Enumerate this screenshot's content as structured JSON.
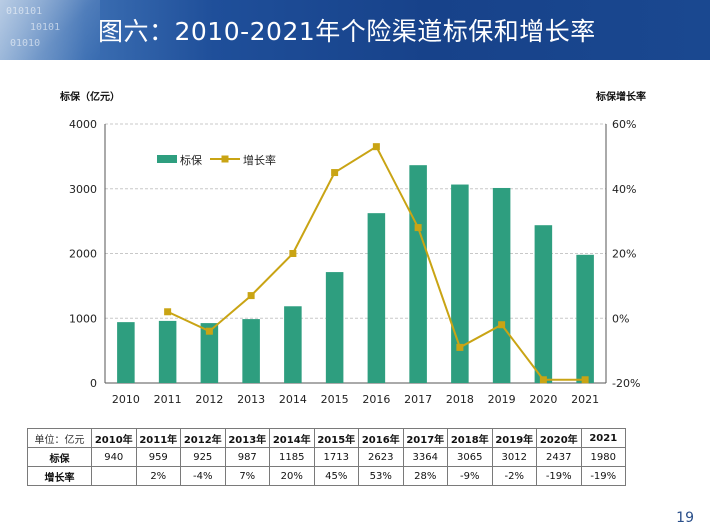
{
  "header": {
    "title": "图六：2010-2021年个险渠道标保和增长率",
    "deco_text": [
      "010101",
      "10101",
      "01010"
    ]
  },
  "chart_data": {
    "type": "bar+line",
    "categories": [
      "2010",
      "2011",
      "2012",
      "2013",
      "2014",
      "2015",
      "2016",
      "2017",
      "2018",
      "2019",
      "2020",
      "2021"
    ],
    "series": [
      {
        "name": "标保",
        "type": "bar",
        "axis": "left",
        "values": [
          940,
          959,
          925,
          987,
          1185,
          1713,
          2623,
          3364,
          3065,
          3012,
          2437,
          1980
        ],
        "color": "#2e9e7f"
      },
      {
        "name": "增长率",
        "type": "line",
        "axis": "right",
        "values": [
          null,
          2,
          -4,
          7,
          20,
          45,
          53,
          28,
          -9,
          -2,
          -19,
          -19
        ],
        "color": "#c9a414"
      }
    ],
    "ylabel_left": "标保（亿元）",
    "ylabel_right": "标保增长率",
    "ylim_left": [
      0,
      4000
    ],
    "yticks_left": [
      "0",
      "1000",
      "2000",
      "3000",
      "4000"
    ],
    "ylim_right": [
      -20,
      60
    ],
    "yticks_right": [
      "-20%",
      "0%",
      "20%",
      "40%",
      "60%"
    ],
    "grid": true,
    "legend_position": "top-left"
  },
  "table": {
    "unit_label": "单位：亿元",
    "years": [
      "2010年",
      "2011年",
      "2012年",
      "2013年",
      "2014年",
      "2015年",
      "2016年",
      "2017年",
      "2018年",
      "2019年",
      "2020年",
      "2021"
    ],
    "rows": [
      {
        "label": "标保",
        "values": [
          "940",
          "959",
          "925",
          "987",
          "1185",
          "1713",
          "2623",
          "3364",
          "3065",
          "3012",
          "2437",
          "1980"
        ]
      },
      {
        "label": "增长率",
        "values": [
          "",
          "2%",
          "-4%",
          "7%",
          "20%",
          "45%",
          "53%",
          "28%",
          "-9%",
          "-2%",
          "-19%",
          "-19%"
        ]
      }
    ]
  },
  "page_number": "19"
}
